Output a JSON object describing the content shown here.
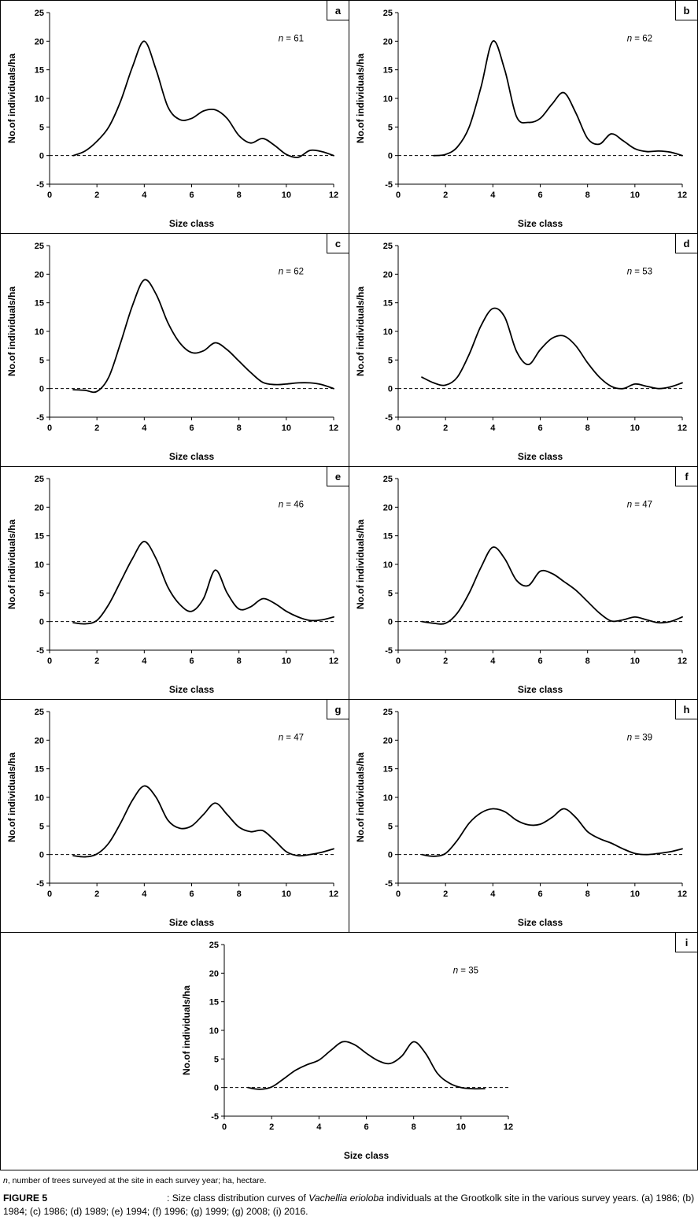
{
  "figure": {
    "footnote_italic": "n",
    "footnote_rest": ", number of trees surveyed at the site in each survey year; ha, hectare.",
    "figure_label": "FIGURE 5",
    "caption_pre_italic": ": Size class distribution curves of ",
    "caption_italic": "Vachellia erioloba",
    "caption_post_italic": " individuals at the Grootkolk site in the various survey years. (a) 1986; (b) 1984; (c) 1986; (d) 1989; (e) 1994; (f) 1996; (g) 1999; (g) 2008; (i) 2016."
  },
  "axes": {
    "xlabel": "Size class",
    "ylabel": "No.of individuals/ha",
    "xlim": [
      0,
      12
    ],
    "ylim": [
      -5,
      25
    ],
    "xticks": [
      0,
      2,
      4,
      6,
      8,
      10,
      12
    ],
    "yticks": [
      -5,
      0,
      5,
      10,
      15,
      20,
      25
    ],
    "zero_line_dashed": true,
    "grid": false
  },
  "chart_data": [
    {
      "type": "line",
      "panel": "a",
      "n": 61,
      "n_label": "n = 61",
      "x": [
        1,
        1.5,
        2,
        2.5,
        3,
        3.5,
        4,
        4.5,
        5,
        5.5,
        6,
        6.5,
        7,
        7.5,
        8,
        8.5,
        9,
        9.5,
        10,
        10.5,
        11,
        11.5,
        12
      ],
      "y": [
        0,
        0.8,
        2.5,
        5,
        9.5,
        15.5,
        20,
        15,
        8.5,
        6.3,
        6.5,
        7.8,
        8,
        6.5,
        3.5,
        2.2,
        3,
        1.8,
        0.2,
        -0.3,
        0.9,
        0.7,
        0
      ]
    },
    {
      "type": "line",
      "panel": "b",
      "n": 62,
      "n_label": "n = 62",
      "x": [
        1.5,
        2,
        2.5,
        3,
        3.5,
        4,
        4.5,
        5,
        5.5,
        6,
        6.5,
        7,
        7.5,
        8,
        8.5,
        9,
        9.5,
        10,
        10.5,
        11,
        11.5,
        12
      ],
      "y": [
        0,
        0.2,
        1.5,
        5,
        12,
        20,
        15,
        6.8,
        5.8,
        6.5,
        9,
        11,
        7.5,
        3,
        2,
        3.8,
        2.6,
        1.2,
        0.7,
        0.8,
        0.6,
        0
      ]
    },
    {
      "type": "line",
      "panel": "c",
      "n": 62,
      "n_label": "n = 62",
      "x": [
        1,
        1.5,
        2,
        2.5,
        3,
        3.5,
        4,
        4.5,
        5,
        5.5,
        6,
        6.5,
        7,
        7.5,
        8,
        8.5,
        9,
        9.5,
        10,
        10.5,
        11,
        11.5,
        12
      ],
      "y": [
        -0.2,
        -0.3,
        -0.5,
        2,
        8,
        14.5,
        19,
        16.5,
        11.5,
        8,
        6.3,
        6.6,
        8,
        6.8,
        4.8,
        2.8,
        1.1,
        0.7,
        0.8,
        1,
        1,
        0.7,
        0
      ]
    },
    {
      "type": "line",
      "panel": "d",
      "n": 53,
      "n_label": "n = 53",
      "x": [
        1,
        1.5,
        2,
        2.5,
        3,
        3.5,
        4,
        4.5,
        5,
        5.5,
        6,
        6.5,
        7,
        7.5,
        8,
        8.5,
        9,
        9.5,
        10,
        10.5,
        11,
        11.5,
        12
      ],
      "y": [
        2,
        1,
        0.6,
        2,
        6,
        11,
        14,
        12.5,
        6.5,
        4.2,
        6.8,
        8.8,
        9.2,
        7.5,
        4.5,
        2,
        0.4,
        0,
        0.8,
        0.4,
        0,
        0.3,
        1
      ]
    },
    {
      "type": "line",
      "panel": "e",
      "n": 46,
      "n_label": "n = 46",
      "x": [
        1,
        1.5,
        2,
        2.5,
        3,
        3.5,
        4,
        4.5,
        5,
        5.5,
        6,
        6.5,
        7,
        7.5,
        8,
        8.5,
        9,
        9.5,
        10,
        10.5,
        11,
        11.5,
        12
      ],
      "y": [
        -0.2,
        -0.4,
        0.2,
        3,
        7,
        11,
        14,
        11,
        6,
        3,
        1.8,
        4,
        9,
        5,
        2.2,
        2.6,
        4,
        3.2,
        1.8,
        0.8,
        0.2,
        0.3,
        0.8
      ]
    },
    {
      "type": "line",
      "panel": "f",
      "n": 47,
      "n_label": "n = 47",
      "x": [
        1,
        1.5,
        2,
        2.5,
        3,
        3.5,
        4,
        4.5,
        5,
        5.5,
        6,
        6.5,
        7,
        7.5,
        8,
        8.5,
        9,
        9.5,
        10,
        10.5,
        11,
        11.5,
        12
      ],
      "y": [
        0,
        -0.3,
        -0.3,
        1.5,
        5,
        9.5,
        13,
        11,
        7.2,
        6.3,
        8.8,
        8.4,
        7,
        5.5,
        3.5,
        1.5,
        0.1,
        0.3,
        0.8,
        0.3,
        -0.2,
        0,
        0.8
      ]
    },
    {
      "type": "line",
      "panel": "g",
      "n": 47,
      "n_label": "n = 47",
      "x": [
        1,
        1.5,
        2,
        2.5,
        3,
        3.5,
        4,
        4.5,
        5,
        5.5,
        6,
        6.5,
        7,
        7.5,
        8,
        8.5,
        9,
        9.5,
        10,
        10.5,
        11,
        11.5,
        12
      ],
      "y": [
        -0.2,
        -0.4,
        0.1,
        2,
        5.5,
        9.5,
        12,
        10,
        6,
        4.6,
        5,
        7,
        9,
        7,
        4.8,
        4,
        4.2,
        2.5,
        0.5,
        -0.2,
        0,
        0.4,
        1
      ]
    },
    {
      "type": "line",
      "panel": "h",
      "n": 39,
      "n_label": "n = 39",
      "x": [
        1,
        1.5,
        2,
        2.5,
        3,
        3.5,
        4,
        4.5,
        5,
        5.5,
        6,
        6.5,
        7,
        7.5,
        8,
        8.5,
        9,
        9.5,
        10,
        10.5,
        11,
        11.5,
        12
      ],
      "y": [
        0,
        -0.3,
        0.2,
        2.5,
        5.5,
        7.3,
        8,
        7.5,
        6,
        5.2,
        5.3,
        6.5,
        8,
        6.5,
        4,
        2.8,
        2,
        1,
        0.2,
        0,
        0.2,
        0.5,
        1
      ]
    },
    {
      "type": "line",
      "panel": "i",
      "n": 35,
      "n_label": "n = 35",
      "x": [
        1,
        1.5,
        2,
        2.5,
        3,
        3.5,
        4,
        4.5,
        5,
        5.5,
        6,
        6.5,
        7,
        7.5,
        8,
        8.5,
        9,
        9.5,
        10,
        10.5,
        11
      ],
      "y": [
        0,
        -0.3,
        0.1,
        1.5,
        3,
        4,
        4.8,
        6.5,
        8,
        7.5,
        6,
        4.7,
        4.2,
        5.5,
        8,
        6,
        2.5,
        0.8,
        0,
        -0.2,
        -0.2
      ]
    }
  ]
}
